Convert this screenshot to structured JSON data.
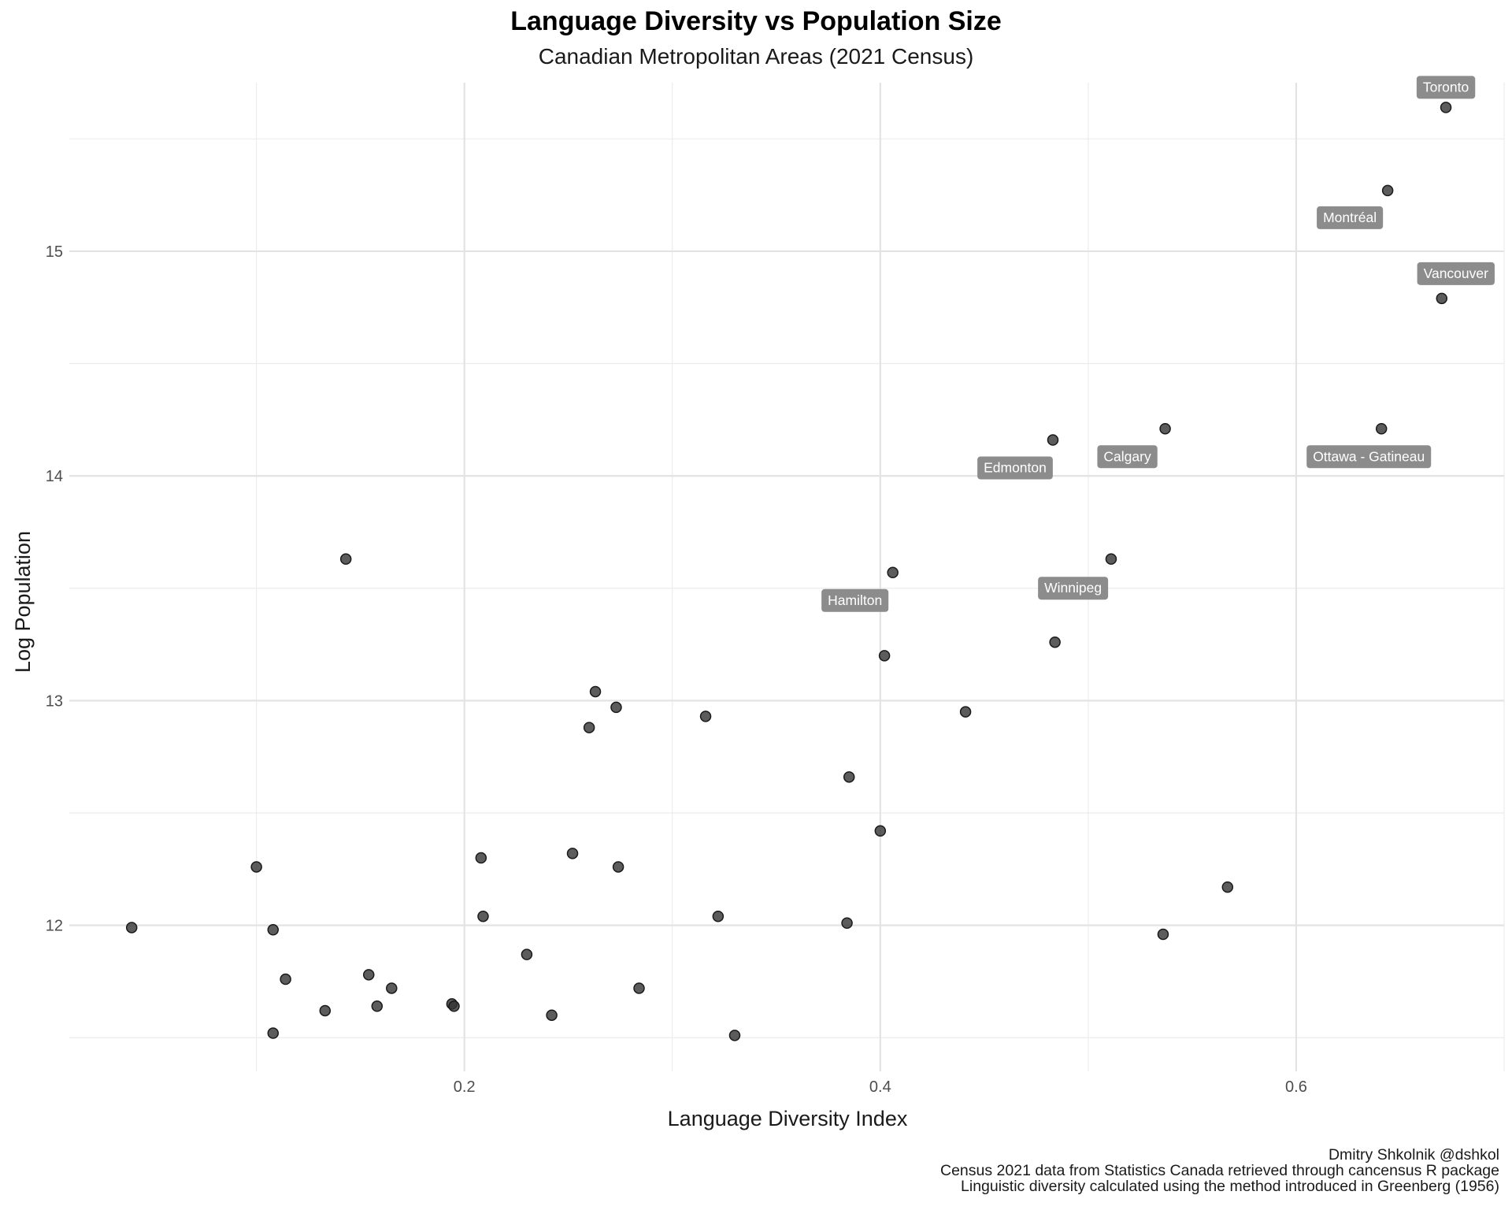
{
  "chart_data": {
    "type": "scatter",
    "title": "Language Diversity vs Population Size",
    "subtitle": "Canadian Metropolitan Areas (2021 Census)",
    "xlabel": "Language Diversity Index",
    "ylabel": "Log Population",
    "xlim": [
      0.01,
      0.7
    ],
    "ylim": [
      11.35,
      15.75
    ],
    "x_ticks": [
      0.2,
      0.4,
      0.6
    ],
    "x_tick_labels": [
      "0.2",
      "0.4",
      "0.6"
    ],
    "x_minor_ticks": [
      0.1,
      0.3,
      0.5,
      0.7
    ],
    "y_ticks": [
      12,
      13,
      14,
      15
    ],
    "y_tick_labels": [
      "12",
      "13",
      "14",
      "15"
    ],
    "y_minor_ticks": [
      11.5,
      12.5,
      13.5,
      14.5,
      15.5
    ],
    "grid": true,
    "point_color": "#333333",
    "label_fill": "#8c8c8c",
    "points": [
      {
        "x": 0.672,
        "y": 15.64,
        "label": "Toronto"
      },
      {
        "x": 0.644,
        "y": 15.27,
        "label": "Montréal"
      },
      {
        "x": 0.67,
        "y": 14.79,
        "label": "Vancouver"
      },
      {
        "x": 0.641,
        "y": 14.21,
        "label": "Ottawa - Gatineau"
      },
      {
        "x": 0.537,
        "y": 14.21,
        "label": "Calgary"
      },
      {
        "x": 0.483,
        "y": 14.16,
        "label": "Edmonton"
      },
      {
        "x": 0.406,
        "y": 13.57,
        "label": "Hamilton"
      },
      {
        "x": 0.484,
        "y": 13.26,
        "label": "Winnipeg"
      },
      {
        "x": 0.511,
        "y": 13.63
      },
      {
        "x": 0.143,
        "y": 13.63
      },
      {
        "x": 0.402,
        "y": 13.2
      },
      {
        "x": 0.263,
        "y": 13.04
      },
      {
        "x": 0.273,
        "y": 12.97
      },
      {
        "x": 0.316,
        "y": 12.93
      },
      {
        "x": 0.441,
        "y": 12.95
      },
      {
        "x": 0.26,
        "y": 12.88
      },
      {
        "x": 0.385,
        "y": 12.66
      },
      {
        "x": 0.4,
        "y": 12.42
      },
      {
        "x": 0.252,
        "y": 12.32
      },
      {
        "x": 0.208,
        "y": 12.3
      },
      {
        "x": 0.274,
        "y": 12.26
      },
      {
        "x": 0.1,
        "y": 12.26
      },
      {
        "x": 0.567,
        "y": 12.17
      },
      {
        "x": 0.209,
        "y": 12.04
      },
      {
        "x": 0.322,
        "y": 12.04
      },
      {
        "x": 0.384,
        "y": 12.01
      },
      {
        "x": 0.04,
        "y": 11.99
      },
      {
        "x": 0.108,
        "y": 11.98
      },
      {
        "x": 0.536,
        "y": 11.96
      },
      {
        "x": 0.23,
        "y": 11.87
      },
      {
        "x": 0.154,
        "y": 11.78
      },
      {
        "x": 0.114,
        "y": 11.76
      },
      {
        "x": 0.165,
        "y": 11.72
      },
      {
        "x": 0.284,
        "y": 11.72
      },
      {
        "x": 0.194,
        "y": 11.65
      },
      {
        "x": 0.195,
        "y": 11.64
      },
      {
        "x": 0.158,
        "y": 11.64
      },
      {
        "x": 0.133,
        "y": 11.62
      },
      {
        "x": 0.242,
        "y": 11.6
      },
      {
        "x": 0.108,
        "y": 11.52
      },
      {
        "x": 0.33,
        "y": 11.51
      }
    ],
    "caption": [
      "Dmitry Shkolnik @dshkol",
      "Census 2021 data from Statistics Canada retrieved through cancensus R package",
      "Linguistic diversity calculated using the method introduced in Greenberg (1956)"
    ]
  }
}
